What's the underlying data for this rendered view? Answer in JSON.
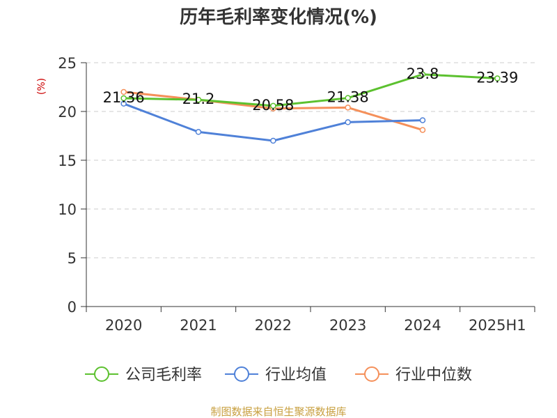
{
  "chart_data": {
    "type": "line",
    "title": "历年毛利率变化情况(%)",
    "ylabel": "(%)",
    "xlabel": "",
    "categories": [
      "2020",
      "2021",
      "2022",
      "2023",
      "2024",
      "2025H1"
    ],
    "ylim": [
      0,
      25
    ],
    "yticks": [
      "0",
      "5",
      "10",
      "15",
      "20",
      "25"
    ],
    "grid": true,
    "legend_position": "bottom",
    "series": [
      {
        "name": "公司毛利率",
        "color": "#5cc12f",
        "values": [
          21.36,
          21.2,
          20.58,
          21.38,
          23.8,
          23.39
        ],
        "labels": [
          "21.36",
          "21.2",
          "20.58",
          "21.38",
          "23.8",
          "23.39"
        ]
      },
      {
        "name": "行业均值",
        "color": "#4f81d8",
        "values": [
          20.8,
          17.9,
          17.0,
          18.9,
          19.1,
          null
        ]
      },
      {
        "name": "行业中位数",
        "color": "#f5905a",
        "values": [
          22.0,
          21.2,
          20.3,
          20.4,
          18.1,
          null
        ]
      }
    ]
  },
  "footer": {
    "source": "制图数据来自恒生聚源数据库"
  },
  "colors": {
    "title": "#333333",
    "ylabel": "#cc0000",
    "axis": "#333333",
    "grid": "#cccccc",
    "footer": "#c8a040"
  }
}
